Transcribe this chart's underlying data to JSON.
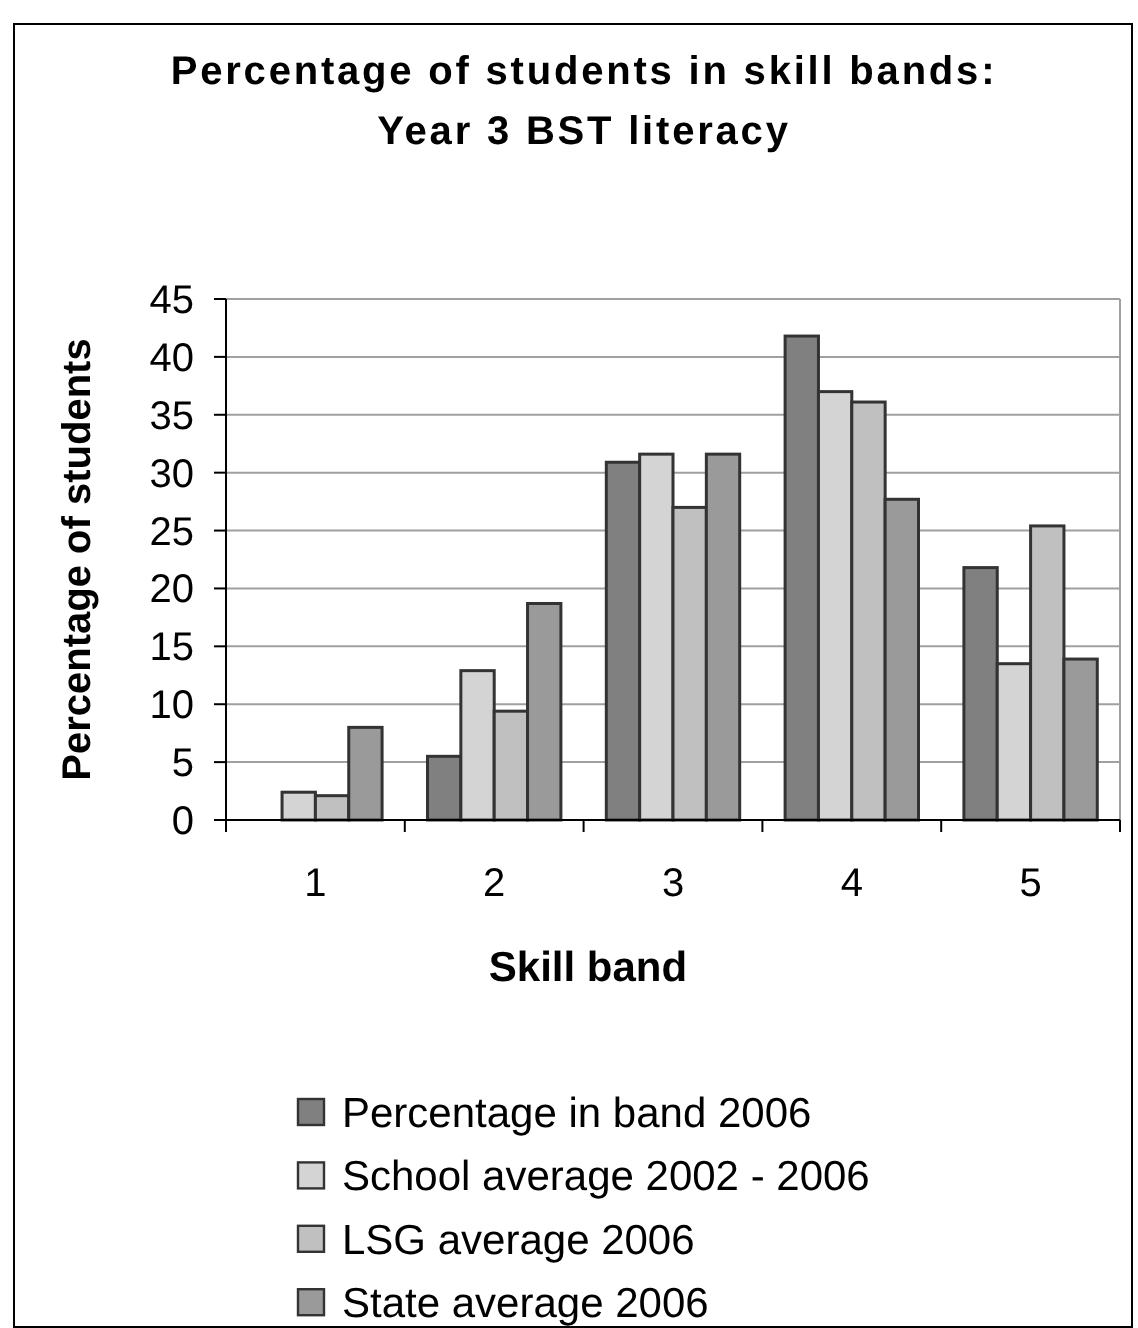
{
  "chart_data": {
    "type": "bar",
    "title": "Percentage of students in skill bands:\nYear 3 BST literacy",
    "xlabel": "Skill band",
    "ylabel": "Percentage of students",
    "categories": [
      "1",
      "2",
      "3",
      "4",
      "5"
    ],
    "series": [
      {
        "name": "Percentage in band 2006",
        "color": "#808080",
        "values": [
          null,
          5.5,
          30.9,
          41.8,
          21.8
        ]
      },
      {
        "name": "School average 2002 - 2006",
        "color": "#d4d4d4",
        "values": [
          2.4,
          12.9,
          31.6,
          37.0,
          13.5
        ]
      },
      {
        "name": "LSG average 2006",
        "color": "#c0c0c0",
        "values": [
          2.1,
          9.4,
          27.0,
          36.1,
          25.4
        ]
      },
      {
        "name": "State average 2006",
        "color": "#9a9a9a",
        "values": [
          8.0,
          18.7,
          31.6,
          27.7,
          13.9
        ]
      }
    ],
    "ylim": [
      0,
      45
    ],
    "yticks": [
      0,
      5,
      10,
      15,
      20,
      25,
      30,
      35,
      40,
      45
    ],
    "grid": "y",
    "legend": "bottom"
  }
}
